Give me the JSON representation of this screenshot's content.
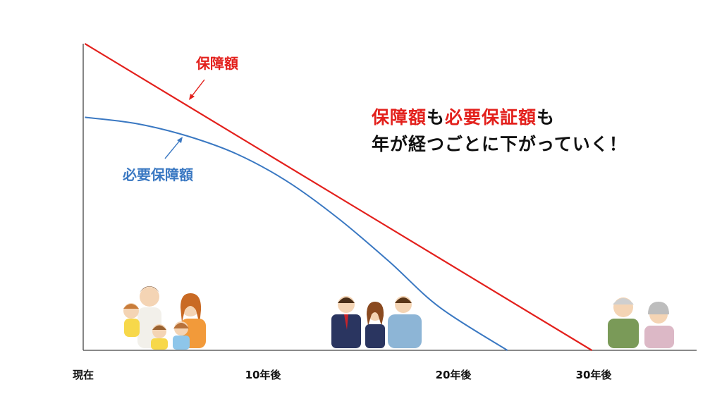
{
  "chart_data": {
    "type": "line",
    "x_ticks": [
      "現在",
      "10年後",
      "20年後",
      "30年後"
    ],
    "series": [
      {
        "name": "保障額",
        "color": "#e3201c",
        "x": [
          0,
          30
        ],
        "y": [
          100,
          0
        ]
      },
      {
        "name": "必要保障額",
        "color": "#3a78c2",
        "x": [
          0,
          3,
          6,
          9,
          12,
          15,
          18,
          21,
          25
        ],
        "y": [
          76,
          74,
          70,
          64,
          55,
          43,
          29,
          14,
          0
        ]
      }
    ],
    "xlim": [
      -0.1,
      36.2
    ],
    "ylim": [
      0,
      100
    ],
    "grid": false,
    "annotations": {
      "headline_line1": [
        {
          "text": "保障額",
          "color": "#e3201c"
        },
        {
          "text": "も",
          "color": "#111111"
        },
        {
          "text": "必要保証額",
          "color": "#e3201c"
        },
        {
          "text": "も",
          "color": "#111111"
        }
      ],
      "headline_line2": "年が経つごとに下がっていく！"
    },
    "illustrations": [
      "family-with-young-children",
      "family-with-teenagers",
      "elderly-couple"
    ]
  }
}
